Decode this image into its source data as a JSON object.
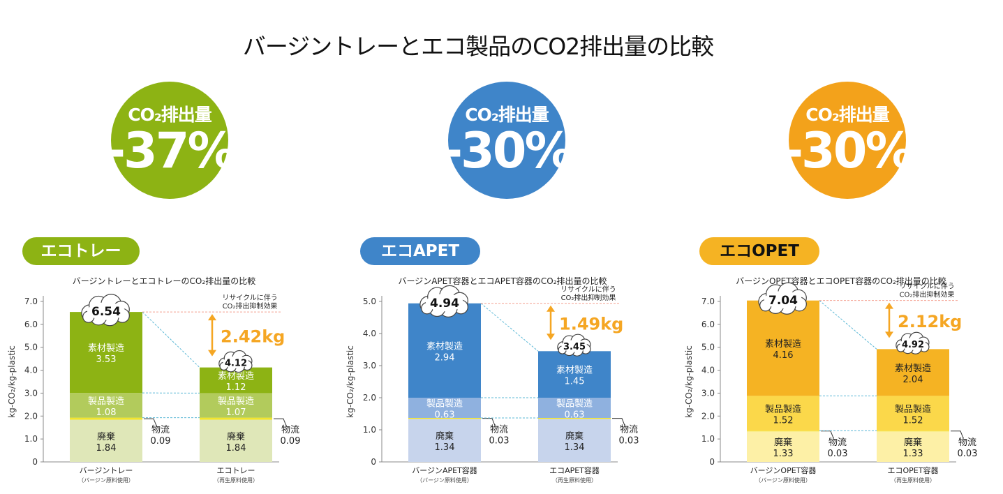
{
  "title": "バージントレーとエコ製品のCO2排出量の比較",
  "badges": [
    {
      "label": "CO₂排出量",
      "value": "-37%",
      "color": "#8db314"
    },
    {
      "label": "CO₂排出量",
      "value": "-30%",
      "color": "#3f85c9"
    },
    {
      "label": "CO₂排出量",
      "value": "-30%",
      "color": "#f3a21b"
    }
  ],
  "products": [
    {
      "label": "エコトレー",
      "color": "#8db314",
      "text_color": "#ffffff"
    },
    {
      "label": "エコAPET",
      "color": "#3f85c9",
      "text_color": "#ffffff"
    },
    {
      "label": "エコOPET",
      "color": "#f5b323",
      "text_color": "#111111"
    }
  ],
  "chart_data": [
    {
      "type": "bar",
      "stacked": true,
      "title": "バージントレーとエコトレーのCO₂排出量の比較",
      "ylabel": "kg-CO₂/kg-plastic",
      "ylim": [
        0,
        7.0
      ],
      "yticks": [
        "0",
        "1.0",
        "2.0",
        "3.0",
        "4.0",
        "5.0",
        "6.0",
        "7.0"
      ],
      "categories": [
        {
          "name": "バージントレー",
          "sub": "（バージン原料使用）"
        },
        {
          "name": "エコトレー",
          "sub": "（再生原料使用）"
        }
      ],
      "series": [
        {
          "name": "廃棄",
          "values": [
            1.84,
            1.84
          ],
          "labels": [
            "1.84",
            "1.84"
          ],
          "color": "#dfe7b8",
          "text": "#222222"
        },
        {
          "name": "物流",
          "values": [
            0.09,
            0.09
          ],
          "labels": [
            "0.09",
            "0.09"
          ],
          "color": "#f2e52c",
          "text": "#222222"
        },
        {
          "name": "製品製造",
          "values": [
            1.08,
            1.07
          ],
          "labels": [
            "1.08",
            "1.07"
          ],
          "color": "#b2cb5c",
          "text": "#ffffff"
        },
        {
          "name": "素材製造",
          "values": [
            3.53,
            1.12
          ],
          "labels": [
            "3.53",
            "1.12"
          ],
          "color": "#8db314",
          "text": "#ffffff"
        }
      ],
      "totals": [
        "6.54",
        "4.12"
      ],
      "reduction": "2.42kg",
      "note_line1": "リサイクルに伴う",
      "note_line2": "CO₂排出抑制効果",
      "accent": "#f5a623",
      "guide": "#f4a090",
      "dash": "#5bb8d6"
    },
    {
      "type": "bar",
      "stacked": true,
      "title": "バージンAPET容器とエコAPET容器のCO₂排出量の比較",
      "ylabel": "kg-CO₂/kg-plastic",
      "ylim": [
        0,
        5.0
      ],
      "yticks": [
        "0",
        "1.0",
        "2.0",
        "3.0",
        "4.0",
        "5.0"
      ],
      "categories": [
        {
          "name": "バージンAPET容器",
          "sub": "（バージン原料使用）"
        },
        {
          "name": "エコAPET容器",
          "sub": "（再生原料使用）"
        }
      ],
      "series": [
        {
          "name": "廃棄",
          "values": [
            1.34,
            1.34
          ],
          "labels": [
            "1.34",
            "1.34"
          ],
          "color": "#c7d4ec",
          "text": "#222222"
        },
        {
          "name": "物流",
          "values": [
            0.03,
            0.03
          ],
          "labels": [
            "0.03",
            "0.03"
          ],
          "color": "#f2e52c",
          "text": "#222222"
        },
        {
          "name": "製品製造",
          "values": [
            0.63,
            0.63
          ],
          "labels": [
            "0.63",
            "0.63"
          ],
          "color": "#8fb1df",
          "text": "#ffffff"
        },
        {
          "name": "素材製造",
          "values": [
            2.94,
            1.45
          ],
          "labels": [
            "2.94",
            "1.45"
          ],
          "color": "#3f85c9",
          "text": "#ffffff"
        }
      ],
      "totals": [
        "4.94",
        "3.45"
      ],
      "reduction": "1.49kg",
      "note_line1": "リサイクルに伴う",
      "note_line2": "CO₂排出抑制効果",
      "accent": "#f5a623",
      "guide": "#f4a090",
      "dash": "#5bb8d6"
    },
    {
      "type": "bar",
      "stacked": true,
      "title": "バージンOPET容器とエコOPET容器のCO₂排出量の比較",
      "ylabel": "kg-CO₂/kg-plastic",
      "ylim": [
        0,
        7.0
      ],
      "yticks": [
        "0",
        "1.0",
        "2.0",
        "3.0",
        "4.0",
        "5.0",
        "6.0",
        "7.0"
      ],
      "categories": [
        {
          "name": "バージンOPET容器",
          "sub": "（バージン原料使用）"
        },
        {
          "name": "エコOPET容器",
          "sub": "（再生原料使用）"
        }
      ],
      "series": [
        {
          "name": "廃棄",
          "values": [
            1.33,
            1.33
          ],
          "labels": [
            "1.33",
            "1.33"
          ],
          "color": "#fdf0a6",
          "text": "#222222"
        },
        {
          "name": "物流",
          "values": [
            0.03,
            0.03
          ],
          "labels": [
            "0.03",
            "0.03"
          ],
          "color": "#f2e52c",
          "text": "#222222"
        },
        {
          "name": "製品製造",
          "values": [
            1.52,
            1.52
          ],
          "labels": [
            "1.52",
            "1.52"
          ],
          "color": "#fbd84a",
          "text": "#222222"
        },
        {
          "name": "素材製造",
          "values": [
            4.16,
            2.04
          ],
          "labels": [
            "4.16",
            "2.04"
          ],
          "color": "#f5b323",
          "text": "#222222"
        }
      ],
      "totals": [
        "7.04",
        "4.92"
      ],
      "reduction": "2.12kg",
      "note_line1": "リサイクルに伴う",
      "note_line2": "CO₂排出抑制効果",
      "accent": "#f5a623",
      "guide": "#f4a090",
      "dash": "#5bb8d6"
    }
  ]
}
